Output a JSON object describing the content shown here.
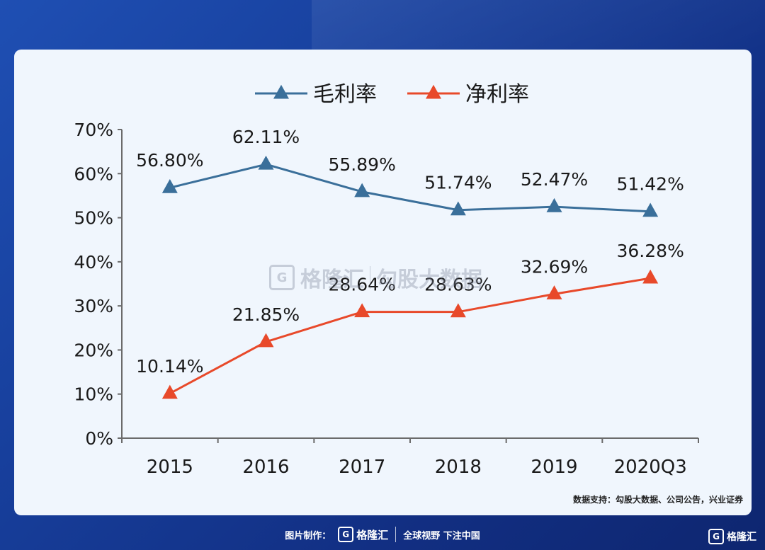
{
  "chart_data": {
    "type": "line",
    "categories": [
      "2015",
      "2016",
      "2017",
      "2018",
      "2019",
      "2020Q3"
    ],
    "series": [
      {
        "name": "毛利率",
        "color": "#3a6f9a",
        "values": [
          56.8,
          62.11,
          55.89,
          51.74,
          52.47,
          51.42
        ],
        "labels": [
          "56.80%",
          "62.11%",
          "55.89%",
          "51.74%",
          "52.47%",
          "51.42%"
        ]
      },
      {
        "name": "净利率",
        "color": "#e8492a",
        "values": [
          10.14,
          21.85,
          28.64,
          28.63,
          32.69,
          36.28
        ],
        "labels": [
          "10.14%",
          "21.85%",
          "28.64%",
          "28.63%",
          "32.69%",
          "36.28%"
        ]
      }
    ],
    "ylim": [
      0,
      70
    ],
    "yticks": [
      "0%",
      "10%",
      "20%",
      "30%",
      "40%",
      "50%",
      "60%",
      "70%"
    ],
    "legend_position": "top",
    "grid": false,
    "marker": "triangle"
  },
  "watermark": {
    "brand": "格隆汇",
    "text": "勾股大数据",
    "logo_letter": "G"
  },
  "source_text": "数据支持：勾股大数据、公司公告，兴业证券",
  "footer": {
    "made_by_label": "图片制作：",
    "brand": "格隆汇",
    "logo_letter": "G",
    "slogan": "全球视野 下注中国"
  },
  "corner_brand": {
    "logo_letter": "G",
    "name": "格隆汇"
  }
}
